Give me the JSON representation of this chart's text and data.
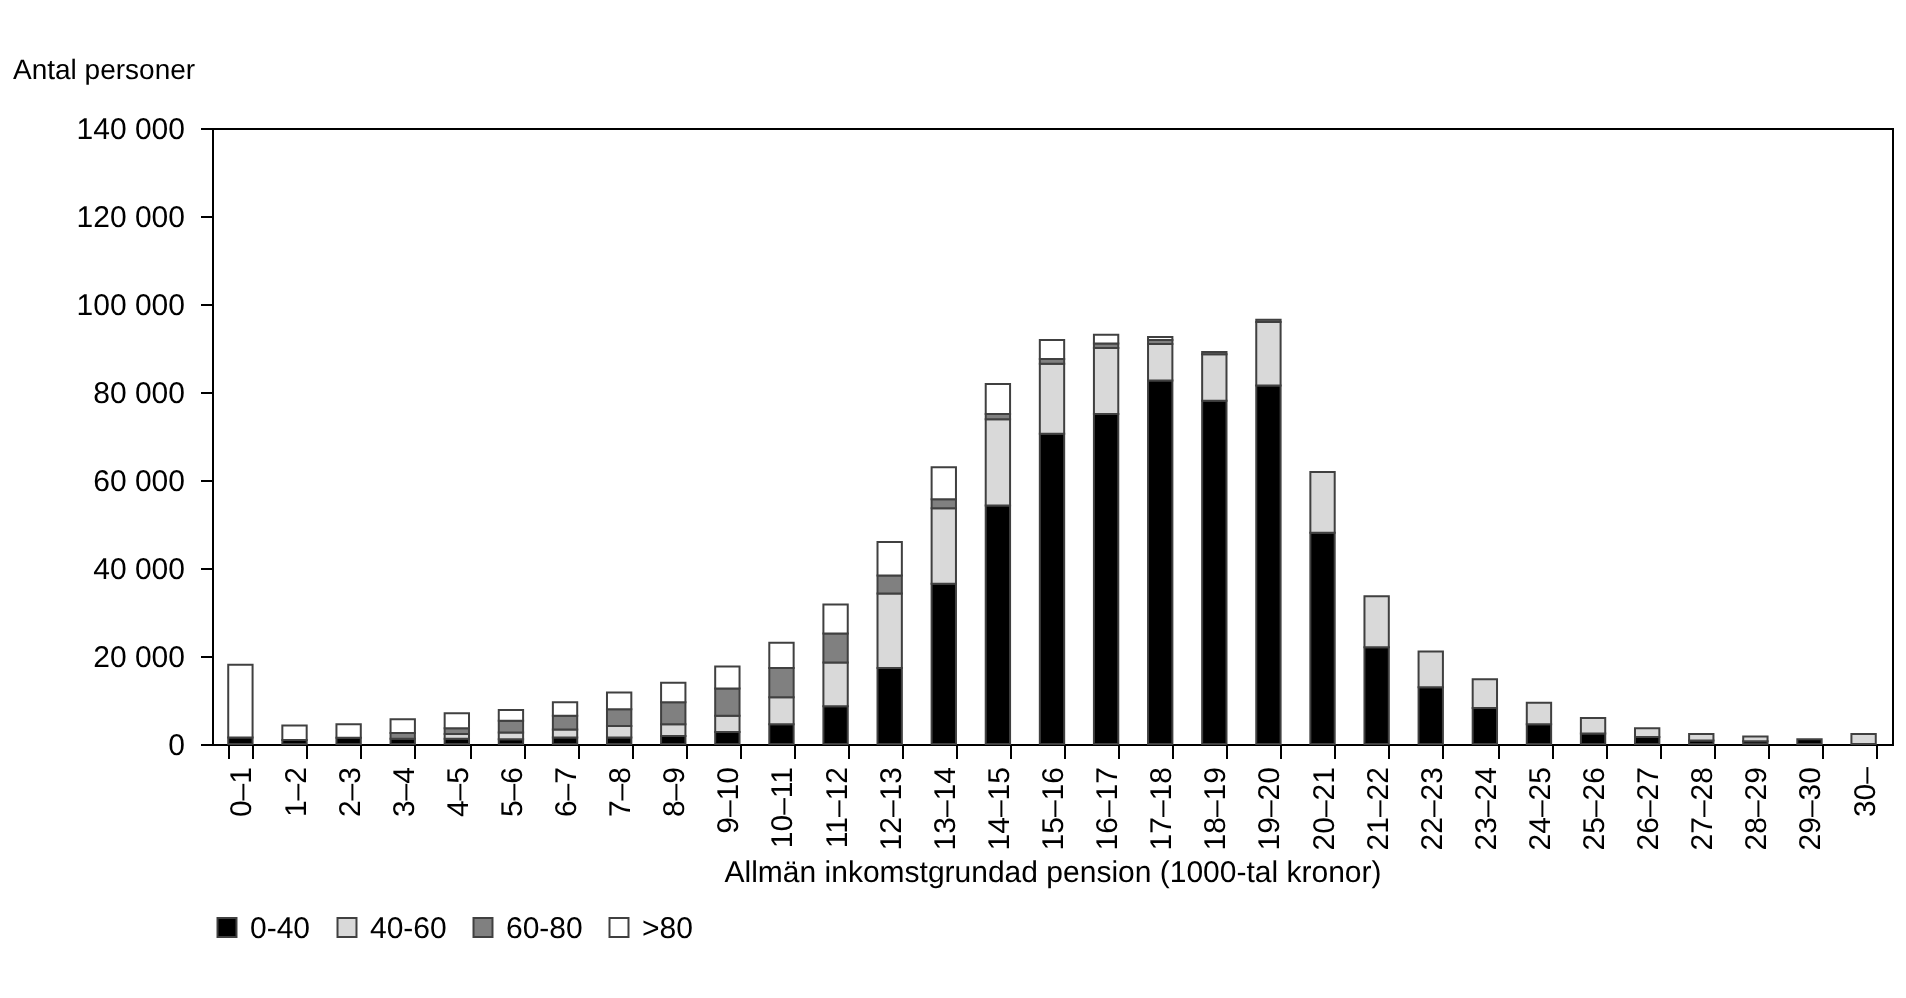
{
  "chart_data": {
    "type": "bar",
    "stacked": true,
    "xlabel": "Allmän inkomstgrundad pension (1000-tal kronor)",
    "ylabel": "Antal personer",
    "categories": [
      "0–1",
      "1–2",
      "2–3",
      "3–4",
      "4–5",
      "5–6",
      "6–7",
      "7–8",
      "8–9",
      "9–10",
      "10–11",
      "11–12",
      "12–13",
      "13–14",
      "14–15",
      "15–16",
      "16–17",
      "17–18",
      "18–19",
      "19–20",
      "20–21",
      "21–22",
      "22–23",
      "23–24",
      "24–25",
      "25–26",
      "26–27",
      "27–28",
      "28–29",
      "29–30",
      "30–"
    ],
    "series": [
      {
        "name": "0-40",
        "color": "#000000",
        "values": [
          1500,
          900,
          1400,
          1200,
          1200,
          1100,
          1500,
          1500,
          1800,
          2700,
          4500,
          8600,
          17300,
          36400,
          54200,
          70500,
          75000,
          82600,
          78000,
          81500,
          48000,
          22000,
          12900,
          8200,
          4500,
          2400,
          1600,
          800,
          600,
          1100,
          0
        ]
      },
      {
        "name": "40-60",
        "color": "#d9d9d9",
        "values": [
          0,
          0,
          0,
          0,
          1100,
          1500,
          1800,
          2600,
          2700,
          3700,
          6100,
          9900,
          16900,
          17200,
          19600,
          15900,
          15000,
          8300,
          10600,
          14400,
          13800,
          11600,
          8100,
          6500,
          4900,
          3500,
          2000,
          1500,
          1100,
          0,
          2300
        ]
      },
      {
        "name": "60-80",
        "color": "#808080",
        "values": [
          0,
          0,
          0,
          1300,
          1300,
          2700,
          3100,
          3800,
          5000,
          6200,
          6700,
          6600,
          4100,
          2000,
          1200,
          1100,
          1000,
          900,
          500,
          500,
          0,
          0,
          0,
          0,
          0,
          0,
          0,
          0,
          0,
          0,
          0
        ]
      },
      {
        "name": ">80",
        "color": "#ffffff",
        "values": [
          16500,
          3300,
          3100,
          3100,
          3400,
          2400,
          3100,
          3800,
          4400,
          5000,
          5700,
          6600,
          7600,
          7300,
          6800,
          4300,
          2000,
          700,
          0,
          0,
          0,
          0,
          0,
          0,
          0,
          0,
          0,
          0,
          0,
          0,
          0
        ]
      }
    ],
    "ylim": [
      0,
      140000
    ],
    "yticks": [
      0,
      {
        "value": 20000,
        "label": "20 000"
      },
      {
        "value": 40000,
        "label": "40 000"
      },
      {
        "value": 60000,
        "label": "60 000"
      },
      {
        "value": 80000,
        "label": "80 000"
      },
      {
        "value": 100000,
        "label": "100 000"
      },
      {
        "value": 120000,
        "label": "120 000"
      },
      {
        "value": 140000,
        "label": "140 000"
      }
    ],
    "grid": false,
    "legend": "bottom"
  }
}
